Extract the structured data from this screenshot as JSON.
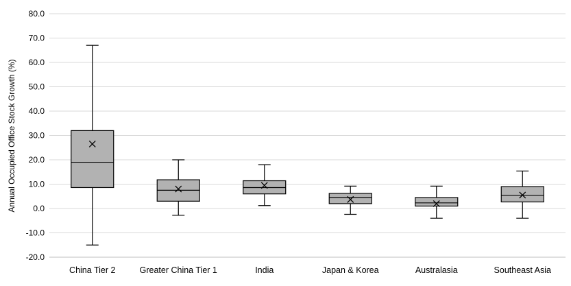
{
  "chart_data": {
    "type": "boxplot",
    "title": "",
    "ylabel": "Annual Occupied Office Stock Growth (%)",
    "xlabel": "",
    "ylim": [
      -20,
      80
    ],
    "y_ticks": [
      "80.0",
      "70.0",
      "60.0",
      "50.0",
      "40.0",
      "30.0",
      "20.0",
      "10.0",
      "0.0",
      "-10.0",
      "-20.0"
    ],
    "y_tick_values": [
      80,
      70,
      60,
      50,
      40,
      30,
      20,
      10,
      0,
      -10,
      -20
    ],
    "grid": "horizontal",
    "categories": [
      "China Tier 2",
      "Greater China Tier 1",
      "India",
      "Japan & Korea",
      "Australasia",
      "Southeast Asia"
    ],
    "boxes": [
      {
        "min": -15.0,
        "q1": 8.6,
        "median": 19.0,
        "q3": 32.0,
        "max": 67.0,
        "mean": 26.5
      },
      {
        "min": -2.8,
        "q1": 3.0,
        "median": 7.5,
        "q3": 11.8,
        "max": 20.0,
        "mean": 8.0
      },
      {
        "min": 1.2,
        "q1": 6.0,
        "median": 8.6,
        "q3": 11.4,
        "max": 18.0,
        "mean": 9.5
      },
      {
        "min": -2.4,
        "q1": 2.0,
        "median": 4.5,
        "q3": 6.2,
        "max": 9.2,
        "mean": 3.7
      },
      {
        "min": -4.0,
        "q1": 1.0,
        "median": 2.3,
        "q3": 4.5,
        "max": 9.2,
        "mean": 2.0
      },
      {
        "min": -4.0,
        "q1": 2.7,
        "median": 5.4,
        "q3": 9.0,
        "max": 15.4,
        "mean": 5.5
      }
    ],
    "colors": {
      "box_fill": "#b2b2b2",
      "stroke": "#000000",
      "grid": "#d9d9d9",
      "axis": "#bfbfbf"
    }
  }
}
